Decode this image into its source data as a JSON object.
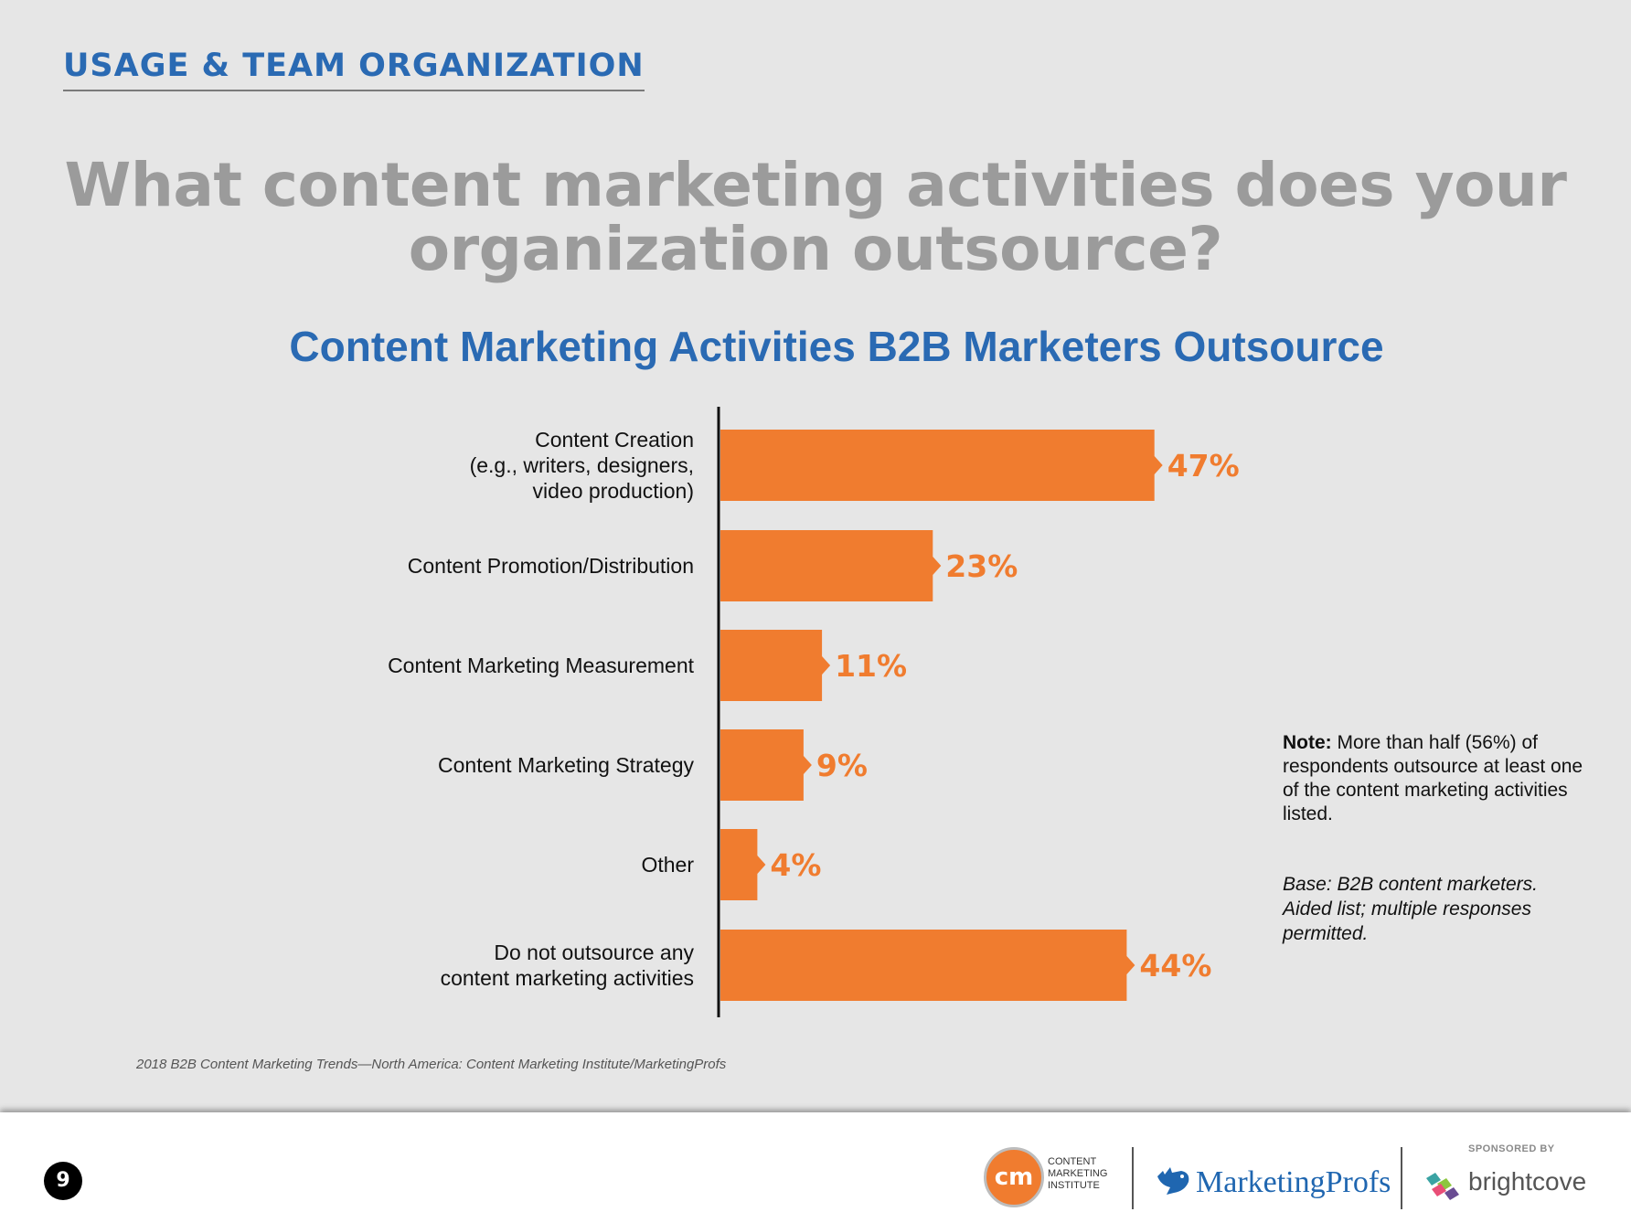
{
  "header": {
    "section_title": "USAGE & TEAM ORGANIZATION",
    "question_line1": "What content marketing activities does your",
    "question_line2": "organization outsource?"
  },
  "chart_data": {
    "type": "bar",
    "orientation": "horizontal",
    "title": "Content Marketing Activities B2B Marketers Outsource",
    "unit": "%",
    "categories": [
      [
        "Content Creation",
        "(e.g., writers, designers,",
        "video production)"
      ],
      [
        "Content Promotion/Distribution"
      ],
      [
        "Content Marketing Measurement"
      ],
      [
        "Content Marketing Strategy"
      ],
      [
        "Other"
      ],
      [
        "Do not outsource any",
        "content marketing activities"
      ]
    ],
    "values": [
      47,
      23,
      11,
      9,
      4,
      44
    ],
    "value_labels": [
      "47%",
      "23%",
      "11%",
      "9%",
      "4%",
      "44%"
    ],
    "xlim": [
      0,
      100
    ],
    "bar_color": "#f07c2f",
    "axis_color": "#111111"
  },
  "note": {
    "label": "Note:",
    "text": "More than half (56%) of respondents outsource at least one of the content marketing activities listed."
  },
  "base_text": "Base: B2B content marketers. Aided list; multiple responses permitted.",
  "source": "2018 B2B Content Marketing Trends—North America: Content Marketing Institute/MarketingProfs",
  "footer": {
    "page_number": "9",
    "cmi_logo_mark": "cm",
    "cmi_line1": "CONTENT",
    "cmi_line2": "MARKETING",
    "cmi_line3": "INSTITUTE",
    "marketingprofs": "MarketingProfs",
    "sponsored_by": "SPONSORED BY",
    "brightcove": "brightcove"
  },
  "colors": {
    "brand_blue": "#2a6ab3",
    "question_gray": "#9b9b9b",
    "orange": "#f07c2f",
    "background": "#e6e6e6"
  }
}
